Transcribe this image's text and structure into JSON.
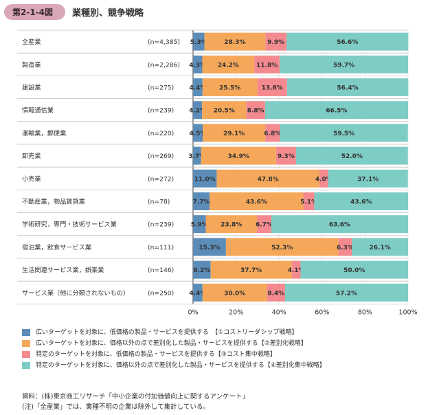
{
  "header": {
    "badge": "第2-1-4図",
    "title": "業種別、競争戦略"
  },
  "chart_data": {
    "type": "bar",
    "orientation": "horizontal",
    "stacked": true,
    "unit": "%",
    "xlim": [
      0,
      100
    ],
    "x_ticks": [
      "0%",
      "20%",
      "40%",
      "60%",
      "80%",
      "100%"
    ],
    "categories": [
      "全産業",
      "製造業",
      "建設業",
      "情報通信業",
      "運輸業，郵便業",
      "卸売業",
      "小売業",
      "不動産業，物品賃貸業",
      "学術研究，専門・技術サービス業",
      "宿泊業，飲食サービス業",
      "生活関連サービス業，娯楽業",
      "サービス業（他に分類されないもの）"
    ],
    "n_labels": [
      "(n=4,385)",
      "(n=2,286)",
      "(n=275)",
      "(n=239)",
      "(n=220)",
      "(n=269)",
      "(n=272)",
      "(n=78)",
      "(n=239)",
      "(n=111)",
      "(n=146)",
      "(n=250)"
    ],
    "series": [
      {
        "name": "広いターゲットを対象に、低価格の製品・サービスを提供する　【①コストリーダシップ戦略】",
        "color": "#5b8db8",
        "values": [
          5.3,
          4.3,
          4.4,
          4.2,
          4.5,
          3.7,
          11.0,
          7.7,
          5.9,
          15.3,
          8.2,
          4.4
        ]
      },
      {
        "name": "広いターゲットを対象に、価格以外の点で差別化した製品・サービスを提供する【②差別化戦略】",
        "color": "#f5a85a",
        "values": [
          28.3,
          24.2,
          25.5,
          20.5,
          29.1,
          34.9,
          47.8,
          43.6,
          23.8,
          52.3,
          37.7,
          30.0
        ]
      },
      {
        "name": "特定のターゲットを対象に、低価格の製品・サービスを提供する【③コスト集中戦略】",
        "color": "#f48a8f",
        "values": [
          9.9,
          11.8,
          13.8,
          8.8,
          6.8,
          9.3,
          4.0,
          5.1,
          6.7,
          6.3,
          4.1,
          8.4
        ]
      },
      {
        "name": "特定のターゲットを対象に、価格以外の点で差別化した製品・サービスを提供する【④差別化集中戦略】",
        "color": "#7ecdc5",
        "values": [
          56.6,
          59.7,
          56.4,
          66.5,
          59.5,
          52.0,
          37.1,
          43.6,
          63.6,
          26.1,
          50.0,
          57.2
        ]
      }
    ]
  },
  "notes": {
    "source": "資料：(株)東京商工リサーチ「中小企業の付加価値向上に関するアンケート」",
    "note": "(注)「全産業」では、業種不明の企業は除外して集計している。"
  }
}
